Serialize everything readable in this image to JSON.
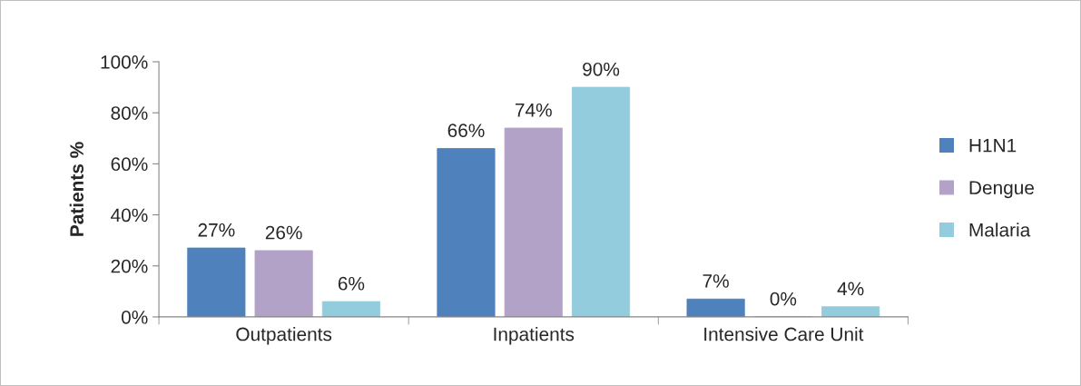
{
  "chart_data": {
    "type": "bar",
    "ylabel": "Patients %",
    "categories": [
      "Outpatients",
      "Inpatients",
      "Intensive Care Unit"
    ],
    "series": [
      {
        "name": "H1N1",
        "color": "#4f81bd",
        "values": [
          27,
          66,
          7
        ],
        "value_labels": [
          "27%",
          "66%",
          "7%"
        ]
      },
      {
        "name": "Dengue",
        "color": "#b3a2c7",
        "values": [
          26,
          74,
          0
        ],
        "value_labels": [
          "26%",
          "74%",
          "0%"
        ]
      },
      {
        "name": "Malaria",
        "color": "#93cddd",
        "values": [
          6,
          90,
          4
        ],
        "value_labels": [
          "6%",
          "90%",
          "4%"
        ]
      }
    ],
    "ylim": [
      0,
      100
    ],
    "yticks": [
      {
        "value": 0,
        "label": "0%"
      },
      {
        "value": 20,
        "label": "20%"
      },
      {
        "value": 40,
        "label": "40%"
      },
      {
        "value": 60,
        "label": "60%"
      },
      {
        "value": 80,
        "label": "80%"
      },
      {
        "value": 100,
        "label": "100%"
      }
    ],
    "grid": false,
    "legend": "right"
  }
}
